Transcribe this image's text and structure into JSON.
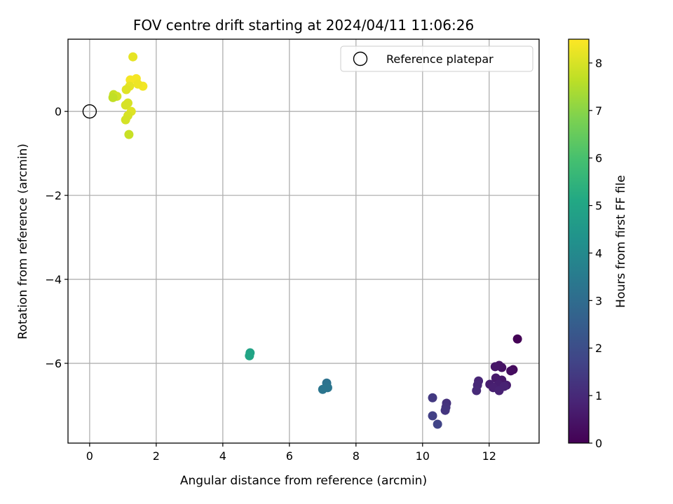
{
  "chart_data": {
    "type": "scatter",
    "title": "FOV centre drift starting at 2024/04/11 11:06:26",
    "xlabel": "Angular distance from reference (arcmin)",
    "ylabel": "Rotation from reference (arcmin)",
    "xlim": [
      -0.65,
      13.5
    ],
    "ylim": [
      -7.9,
      1.72
    ],
    "xticks": [
      0,
      2,
      4,
      6,
      8,
      10,
      12
    ],
    "yticks": [
      0,
      -2,
      -4,
      -6
    ],
    "grid": true,
    "legend": {
      "placement": "top-right",
      "entries": [
        "Reference platepar"
      ]
    },
    "reference_point": {
      "x": 0,
      "y": 0
    },
    "colorbar": {
      "label": "Hours from first FF file",
      "min": 0,
      "max": 8.5,
      "ticks": [
        0,
        1,
        2,
        3,
        4,
        5,
        6,
        7,
        8
      ],
      "colormap": "viridis"
    },
    "points": [
      {
        "x": 12.85,
        "y": -5.42,
        "h": 0.05
      },
      {
        "x": 12.72,
        "y": -6.15,
        "h": 0.2
      },
      {
        "x": 12.65,
        "y": -6.18,
        "h": 0.3
      },
      {
        "x": 12.38,
        "y": -6.1,
        "h": 0.4
      },
      {
        "x": 12.3,
        "y": -6.05,
        "h": 0.45
      },
      {
        "x": 12.18,
        "y": -6.08,
        "h": 0.5
      },
      {
        "x": 12.38,
        "y": -6.4,
        "h": 0.55
      },
      {
        "x": 12.2,
        "y": -6.35,
        "h": 0.6
      },
      {
        "x": 12.52,
        "y": -6.52,
        "h": 0.65
      },
      {
        "x": 12.28,
        "y": -6.5,
        "h": 0.7
      },
      {
        "x": 12.02,
        "y": -6.5,
        "h": 0.7
      },
      {
        "x": 12.12,
        "y": -6.58,
        "h": 0.75
      },
      {
        "x": 12.3,
        "y": -6.65,
        "h": 0.8
      },
      {
        "x": 12.45,
        "y": -6.55,
        "h": 0.8
      },
      {
        "x": 11.68,
        "y": -6.42,
        "h": 0.9
      },
      {
        "x": 11.65,
        "y": -6.52,
        "h": 0.95
      },
      {
        "x": 11.62,
        "y": -6.65,
        "h": 1.0
      },
      {
        "x": 10.72,
        "y": -6.95,
        "h": 1.2
      },
      {
        "x": 10.7,
        "y": -7.05,
        "h": 1.25
      },
      {
        "x": 10.68,
        "y": -7.12,
        "h": 1.3
      },
      {
        "x": 10.3,
        "y": -6.82,
        "h": 1.4
      },
      {
        "x": 10.3,
        "y": -7.25,
        "h": 1.6
      },
      {
        "x": 10.45,
        "y": -7.45,
        "h": 1.7
      },
      {
        "x": 7.12,
        "y": -6.47,
        "h": 3.2
      },
      {
        "x": 7.15,
        "y": -6.58,
        "h": 3.3
      },
      {
        "x": 7.0,
        "y": -6.62,
        "h": 3.3
      },
      {
        "x": 4.82,
        "y": -5.75,
        "h": 4.9
      },
      {
        "x": 4.8,
        "y": -5.82,
        "h": 5.0
      },
      {
        "x": 1.3,
        "y": 1.3,
        "h": 8.2
      },
      {
        "x": 1.22,
        "y": 0.75,
        "h": 8.4
      },
      {
        "x": 1.4,
        "y": 0.78,
        "h": 8.4
      },
      {
        "x": 1.6,
        "y": 0.6,
        "h": 8.35
      },
      {
        "x": 1.45,
        "y": 0.65,
        "h": 8.3
      },
      {
        "x": 1.2,
        "y": 0.6,
        "h": 8.2
      },
      {
        "x": 1.1,
        "y": 0.52,
        "h": 8.1
      },
      {
        "x": 0.72,
        "y": 0.4,
        "h": 7.8
      },
      {
        "x": 0.82,
        "y": 0.36,
        "h": 7.9
      },
      {
        "x": 0.7,
        "y": 0.33,
        "h": 7.7
      },
      {
        "x": 1.15,
        "y": 0.2,
        "h": 8.0
      },
      {
        "x": 1.08,
        "y": 0.15,
        "h": 8.0
      },
      {
        "x": 1.25,
        "y": 0.0,
        "h": 8.1
      },
      {
        "x": 1.15,
        "y": -0.1,
        "h": 8.0
      },
      {
        "x": 1.08,
        "y": -0.2,
        "h": 7.95
      },
      {
        "x": 1.18,
        "y": -0.55,
        "h": 7.8
      }
    ]
  }
}
